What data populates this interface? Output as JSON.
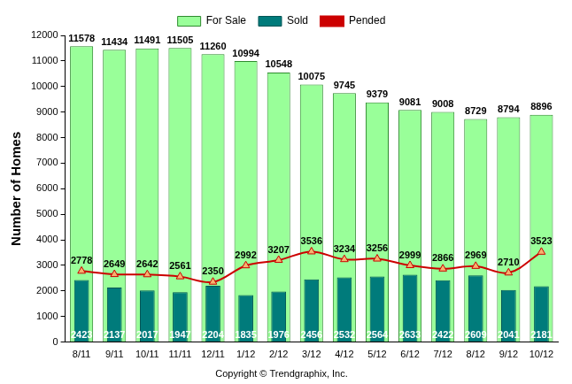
{
  "chart_data": {
    "type": "bar",
    "y_label": "Number of Homes",
    "annotations": [
      "Copyright © Trendgraphix, Inc."
    ],
    "categories": [
      "8/11",
      "9/11",
      "10/11",
      "11/11",
      "12/11",
      "1/12",
      "2/12",
      "3/12",
      "4/12",
      "5/12",
      "6/12",
      "7/12",
      "8/12",
      "9/12",
      "10/12"
    ],
    "series": [
      {
        "name": "For Sale",
        "type": "bar",
        "color": "#99ff99",
        "values": [
          11578,
          11434,
          11491,
          11505,
          11260,
          10994,
          10548,
          10075,
          9745,
          9379,
          9081,
          9008,
          8729,
          8794,
          8896
        ]
      },
      {
        "name": "Sold",
        "type": "bar",
        "color": "#007b7b",
        "values": [
          2423,
          2137,
          2017,
          1947,
          2204,
          1835,
          1976,
          2456,
          2532,
          2564,
          2633,
          2422,
          2609,
          2041,
          2181
        ]
      },
      {
        "name": "Pended",
        "type": "line",
        "color": "#cc0000",
        "marker": "triangle",
        "values": [
          2778,
          2649,
          2642,
          2561,
          2350,
          2992,
          3207,
          3536,
          3234,
          3256,
          2999,
          2866,
          2969,
          2710,
          3523
        ]
      }
    ],
    "ylim": [
      0,
      12000
    ],
    "yticks": [
      0,
      1000,
      2000,
      3000,
      4000,
      5000,
      6000,
      7000,
      8000,
      9000,
      10000,
      11000,
      12000
    ],
    "grid": false,
    "legend": "top",
    "data_labels": true
  }
}
